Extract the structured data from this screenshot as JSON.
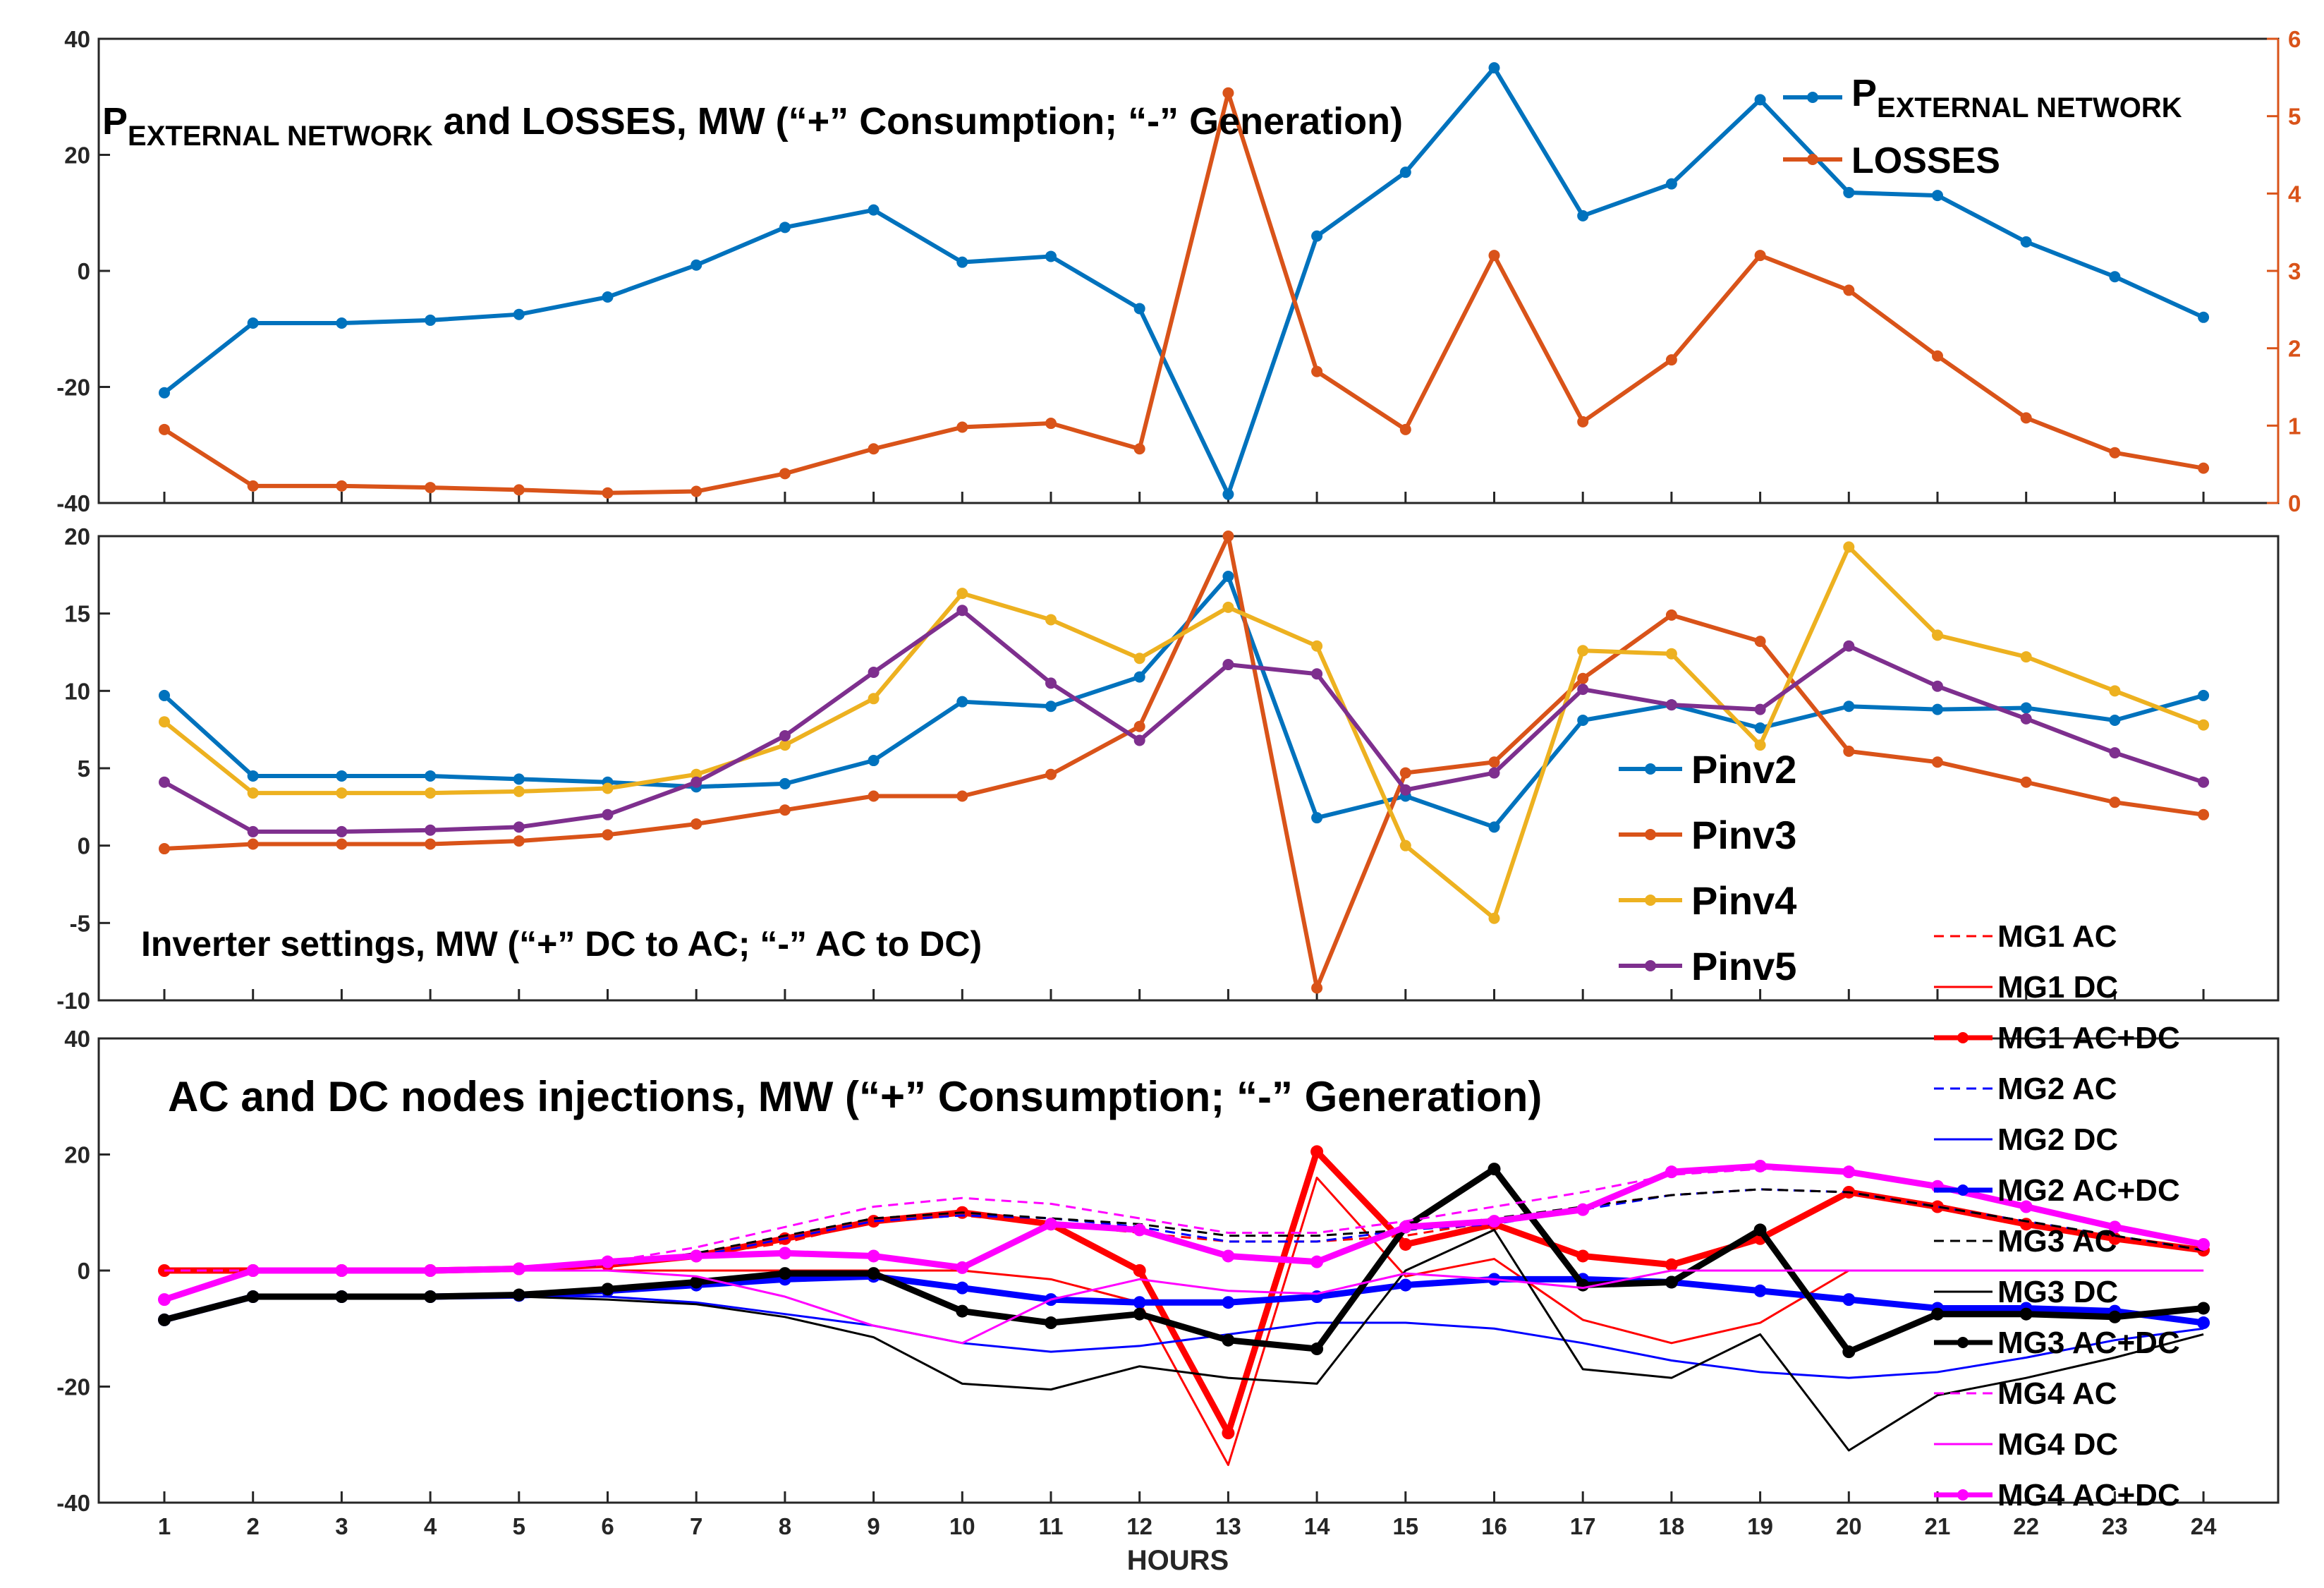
{
  "x_axis": {
    "label": "HOURS",
    "ticks": [
      "1",
      "2",
      "3",
      "4",
      "5",
      "6",
      "7",
      "8",
      "9",
      "10",
      "11",
      "12",
      "13",
      "14",
      "15",
      "16",
      "17",
      "18",
      "19",
      "20",
      "21",
      "22",
      "23",
      "24"
    ]
  },
  "chart_data": [
    {
      "type": "line",
      "title_main": "P",
      "title_sub": "EXTERNAL NETWORK",
      "title_rest": " and LOSSES, MW (“+” Consumption; “-” Generation)",
      "x": [
        1,
        2,
        3,
        4,
        5,
        6,
        7,
        8,
        9,
        10,
        11,
        12,
        13,
        14,
        15,
        16,
        17,
        18,
        19,
        20,
        21,
        22,
        23,
        24
      ],
      "ylim": [
        -40,
        40
      ],
      "yticks": [
        -40,
        -20,
        0,
        20,
        40
      ],
      "y2lim": [
        0,
        6
      ],
      "y2ticks": [
        0,
        1,
        2,
        3,
        4,
        5,
        6
      ],
      "grid": false,
      "legend_position": "top-right",
      "series": [
        {
          "name_main": "P",
          "name_sub": "EXTERNAL NETWORK",
          "axis": "left",
          "color": "#0072BD",
          "width": 6,
          "dash": "",
          "marker": true,
          "values": [
            -21,
            -9,
            -9,
            -8.5,
            -7.5,
            -4.5,
            1,
            7.5,
            10.5,
            1.5,
            2.5,
            -6.5,
            -38.5,
            6,
            17,
            35,
            9.5,
            15,
            29.5,
            13.5,
            13,
            5,
            -1,
            -8
          ]
        },
        {
          "name_main": "LOSSES",
          "name_sub": "",
          "axis": "right",
          "color": "#D95319",
          "width": 6,
          "dash": "",
          "marker": true,
          "values": [
            0.95,
            0.22,
            0.22,
            0.2,
            0.17,
            0.13,
            0.15,
            0.38,
            0.7,
            0.98,
            1.03,
            0.7,
            5.3,
            1.7,
            0.95,
            3.2,
            1.05,
            1.85,
            3.2,
            2.75,
            1.9,
            1.1,
            0.65,
            0.45
          ]
        }
      ]
    },
    {
      "type": "line",
      "title": "Inverter settings, MW (“+” DC to AC; “-” AC to DC)",
      "x": [
        1,
        2,
        3,
        4,
        5,
        6,
        7,
        8,
        9,
        10,
        11,
        12,
        13,
        14,
        15,
        16,
        17,
        18,
        19,
        20,
        21,
        22,
        23,
        24
      ],
      "ylim": [
        -10,
        20
      ],
      "yticks": [
        -10,
        -5,
        0,
        5,
        10,
        15,
        20
      ],
      "grid": false,
      "legend_position": "right",
      "series": [
        {
          "name": "Pinv2",
          "color": "#0072BD",
          "width": 6,
          "dash": "",
          "marker": true,
          "values": [
            9.7,
            4.5,
            4.5,
            4.5,
            4.3,
            4.1,
            3.8,
            4.0,
            5.5,
            9.3,
            9.0,
            10.9,
            17.4,
            1.8,
            3.2,
            1.2,
            8.1,
            9.1,
            7.6,
            9.0,
            8.8,
            8.9,
            8.1,
            9.7
          ]
        },
        {
          "name": "Pinv3",
          "color": "#D95319",
          "width": 6,
          "dash": "",
          "marker": true,
          "values": [
            -0.2,
            0.1,
            0.1,
            0.1,
            0.3,
            0.7,
            1.4,
            2.3,
            3.2,
            3.2,
            4.6,
            7.7,
            20.0,
            -9.2,
            4.7,
            5.4,
            10.8,
            14.9,
            13.2,
            6.1,
            5.4,
            4.1,
            2.8,
            2.0
          ]
        },
        {
          "name": "Pinv4",
          "color": "#EDB120",
          "width": 6,
          "dash": "",
          "marker": true,
          "values": [
            8.0,
            3.4,
            3.4,
            3.4,
            3.5,
            3.7,
            4.6,
            6.5,
            9.5,
            16.3,
            14.6,
            12.1,
            15.4,
            12.9,
            0.0,
            -4.7,
            12.6,
            12.4,
            6.5,
            19.3,
            13.6,
            12.2,
            10.0,
            7.8
          ]
        },
        {
          "name": "Pinv5",
          "color": "#7E2F8E",
          "width": 6,
          "dash": "",
          "marker": true,
          "values": [
            4.1,
            0.9,
            0.9,
            1.0,
            1.2,
            2.0,
            4.1,
            7.1,
            11.2,
            15.2,
            10.5,
            6.8,
            11.7,
            11.1,
            3.6,
            4.7,
            10.1,
            9.1,
            8.8,
            12.9,
            10.3,
            8.2,
            6.0,
            4.1
          ]
        }
      ]
    },
    {
      "type": "line",
      "title": "AC and DC nodes injections, MW (“+” Consumption; “-” Generation)",
      "x": [
        1,
        2,
        3,
        4,
        5,
        6,
        7,
        8,
        9,
        10,
        11,
        12,
        13,
        14,
        15,
        16,
        17,
        18,
        19,
        20,
        21,
        22,
        23,
        24
      ],
      "ylim": [
        -40,
        40
      ],
      "yticks": [
        -40,
        -20,
        0,
        20,
        40
      ],
      "grid": false,
      "legend_position": "right",
      "series": [
        {
          "name": "MG1 AC",
          "color": "#FF0000",
          "width": 3,
          "dash": "14,9",
          "marker": false,
          "values": [
            0,
            0,
            0,
            0,
            0.3,
            1,
            2.5,
            4.8,
            8.5,
            9.5,
            8.0,
            6.5,
            5.0,
            5.0,
            6.0,
            8.5,
            11.0,
            13.0,
            14.0,
            13.5,
            11.0,
            8.0,
            5.5,
            3.5
          ]
        },
        {
          "name": "MG1 DC",
          "color": "#FF0000",
          "width": 3,
          "dash": "",
          "marker": false,
          "values": [
            0,
            0,
            0,
            0,
            0,
            0,
            0,
            0,
            0,
            0,
            -1.5,
            -5.5,
            -33.5,
            16,
            -1,
            2,
            -8.5,
            -12.5,
            -9,
            0,
            0,
            0,
            0,
            0
          ]
        },
        {
          "name": "MG1 AC+DC",
          "color": "#FF0000",
          "width": 9,
          "dash": "",
          "marker": true,
          "values": [
            0,
            0,
            0,
            0,
            0.3,
            1,
            2.5,
            5.5,
            8.5,
            10,
            8,
            0,
            -28,
            20.5,
            4.5,
            8,
            2.5,
            1,
            5.5,
            13.5,
            11,
            8,
            5.5,
            3.5
          ]
        },
        {
          "name": "MG2 AC",
          "color": "#0000FF",
          "width": 3,
          "dash": "14,9",
          "marker": false,
          "values": [
            0,
            0,
            0,
            0,
            0.3,
            1,
            2.5,
            5.5,
            8.5,
            9.5,
            9.0,
            7.5,
            5.0,
            5.0,
            7.0,
            8.0,
            10.5,
            13.0,
            14.0,
            13.5,
            11.0,
            8.5,
            6.0,
            3.5
          ]
        },
        {
          "name": "MG2 DC",
          "color": "#0000FF",
          "width": 3,
          "dash": "",
          "marker": false,
          "values": [
            -8.5,
            -4.5,
            -4.5,
            -4.5,
            -4.3,
            -4.5,
            -5.5,
            -7.5,
            -9.5,
            -12.5,
            -14.0,
            -13.0,
            -11.0,
            -9.0,
            -9.0,
            -10.0,
            -12.5,
            -15.5,
            -17.5,
            -18.5,
            -17.5,
            -15.0,
            -12.0,
            -10.0
          ]
        },
        {
          "name": "MG2 AC+DC",
          "color": "#0000FF",
          "width": 9,
          "dash": "",
          "marker": true,
          "values": [
            -8.5,
            -4.5,
            -4.5,
            -4.5,
            -4.3,
            -3.5,
            -2.5,
            -1.5,
            -1,
            -3,
            -5,
            -5.5,
            -5.5,
            -4.5,
            -2.5,
            -1.5,
            -1.5,
            -2,
            -3.5,
            -5,
            -6.5,
            -6.5,
            -7,
            -9
          ]
        },
        {
          "name": "MG3 AC",
          "color": "#000000",
          "width": 3,
          "dash": "14,9",
          "marker": false,
          "values": [
            0,
            0,
            0,
            0,
            0.3,
            1,
            3,
            6,
            9,
            10,
            9,
            8,
            6,
            6,
            7,
            9,
            11,
            13,
            14,
            13.5,
            11,
            8.5,
            6,
            3.5
          ]
        },
        {
          "name": "MG3 DC",
          "color": "#000000",
          "width": 3,
          "dash": "",
          "marker": false,
          "values": [
            -8.5,
            -4.5,
            -4.5,
            -4.5,
            -4.5,
            -5.0,
            -5.8,
            -8.0,
            -11.5,
            -19.5,
            -20.5,
            -16.5,
            -18.5,
            -19.5,
            0.0,
            7.0,
            -17.0,
            -18.5,
            -11.0,
            -31.0,
            -21.5,
            -18.5,
            -15.0,
            -11.0
          ]
        },
        {
          "name": "MG3 AC+DC",
          "color": "#000000",
          "width": 9,
          "dash": "",
          "marker": true,
          "values": [
            -8.5,
            -4.5,
            -4.5,
            -4.5,
            -4.2,
            -3.2,
            -2,
            -0.5,
            -0.5,
            -7,
            -9,
            -7.5,
            -12,
            -13.5,
            7.5,
            17.5,
            -2.5,
            -2,
            7,
            -14,
            -7.5,
            -7.5,
            -8,
            -6.5
          ]
        },
        {
          "name": "MG4 AC",
          "color": "#FF00FF",
          "width": 3,
          "dash": "14,9",
          "marker": false,
          "values": [
            0,
            0,
            0,
            0,
            0.3,
            1.5,
            4,
            7.5,
            11,
            12.5,
            11.5,
            9,
            6.5,
            6.5,
            8.5,
            11,
            13.5,
            16.5,
            17.5,
            17,
            14.5,
            11,
            7.5,
            4.5
          ]
        },
        {
          "name": "MG4 DC",
          "color": "#FF00FF",
          "width": 3,
          "dash": "",
          "marker": false,
          "values": [
            -5,
            0,
            0,
            0,
            0,
            0,
            -1,
            -4.5,
            -9.5,
            -12.5,
            -5,
            -1.5,
            -3.5,
            -4,
            -0.5,
            -1.5,
            -3,
            0,
            0,
            0,
            0,
            0,
            0,
            0
          ]
        },
        {
          "name": "MG4 AC+DC",
          "color": "#FF00FF",
          "width": 9,
          "dash": "",
          "marker": true,
          "values": [
            -5,
            0,
            0,
            0,
            0.3,
            1.5,
            2.5,
            3,
            2.5,
            0.5,
            8,
            7,
            2.5,
            1.5,
            7.5,
            8.5,
            10.5,
            17,
            18,
            17,
            14.5,
            11,
            7.5,
            4.5
          ]
        }
      ]
    }
  ]
}
